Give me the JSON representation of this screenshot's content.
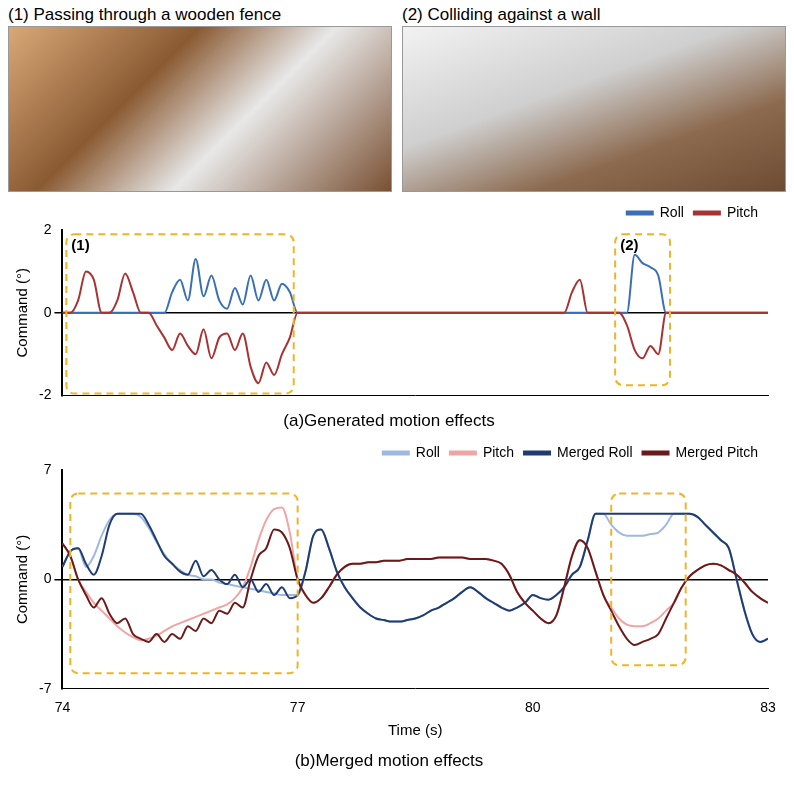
{
  "images": [
    {
      "caption": "(1) Passing through a wooden fence"
    },
    {
      "caption": "(2) Colliding against a wall"
    }
  ],
  "chart_data": [
    {
      "type": "line",
      "title": "(a)Generated motion effects",
      "y_label": "Command (°)",
      "tick_labels": "y",
      "legend": "top right",
      "xlim": [
        74,
        83
      ],
      "ylim": [
        -2,
        2
      ],
      "yticks": [
        -2,
        0,
        2
      ],
      "x": [
        74,
        74.1,
        74.2,
        74.3,
        74.4,
        74.5,
        74.6,
        74.7,
        74.8,
        74.9,
        75,
        75.1,
        75.2,
        75.3,
        75.4,
        75.5,
        75.6,
        75.7,
        75.8,
        75.9,
        76,
        76.1,
        76.2,
        76.3,
        76.4,
        76.5,
        76.6,
        76.7,
        76.8,
        76.9,
        77,
        77.1,
        77.2,
        77.3,
        77.4,
        77.5,
        77.6,
        77.7,
        77.8,
        77.9,
        78,
        78.1,
        78.2,
        78.3,
        78.4,
        78.5,
        78.6,
        78.7,
        78.8,
        78.9,
        79,
        79.1,
        79.2,
        79.3,
        79.4,
        79.5,
        79.6,
        79.7,
        79.8,
        79.9,
        80,
        80.1,
        80.2,
        80.3,
        80.4,
        80.5,
        80.6,
        80.7,
        80.8,
        80.9,
        81,
        81.1,
        81.2,
        81.3,
        81.4,
        81.5,
        81.6,
        81.7,
        81.8,
        81.9,
        82,
        82.1,
        82.2,
        82.3,
        82.4,
        82.5,
        82.6,
        82.7,
        82.8,
        82.9,
        83
      ],
      "series": [
        {
          "name": "Roll",
          "color": "#3a6fb5",
          "values": [
            0,
            0,
            0,
            0,
            0,
            0,
            0,
            0,
            0,
            0,
            0,
            0,
            0,
            0,
            0.5,
            0.8,
            0.3,
            1.3,
            0.4,
            0.9,
            0.3,
            0.1,
            0.6,
            0.2,
            0.9,
            0.3,
            0.8,
            0.3,
            0.7,
            0.5,
            0,
            0,
            0,
            0,
            0,
            0,
            0,
            0,
            0,
            0,
            0,
            0,
            0,
            0,
            0,
            0,
            0,
            0,
            0,
            0,
            0,
            0,
            0,
            0,
            0,
            0,
            0,
            0,
            0,
            0,
            0,
            0,
            0,
            0,
            0,
            0,
            0,
            0,
            0,
            0,
            0,
            0,
            0,
            1.4,
            1.2,
            1.1,
            0.9,
            0,
            0,
            0,
            0,
            0,
            0,
            0,
            0,
            0,
            0,
            0,
            0,
            0,
            0
          ]
        },
        {
          "name": "Pitch",
          "color": "#a83232",
          "values": [
            0,
            0,
            0.3,
            1.0,
            0.8,
            0,
            0,
            0.3,
            0.95,
            0.5,
            0,
            0,
            -0.3,
            -0.6,
            -0.9,
            -0.5,
            -0.8,
            -1.0,
            -0.4,
            -1.1,
            -0.6,
            -0.5,
            -0.9,
            -0.5,
            -1.3,
            -1.7,
            -1.2,
            -1.5,
            -1.0,
            -0.6,
            0,
            0,
            0,
            0,
            0,
            0,
            0,
            0,
            0,
            0,
            0,
            0,
            0,
            0,
            0,
            0,
            0,
            0,
            0,
            0,
            0,
            0,
            0,
            0,
            0,
            0,
            0,
            0,
            0,
            0,
            0,
            0,
            0,
            0,
            0,
            0.5,
            0.8,
            0,
            0,
            0,
            0,
            0,
            -0.3,
            -0.9,
            -1.1,
            -0.8,
            -1.0,
            0,
            0,
            0,
            0,
            0,
            0,
            0,
            0,
            0,
            0,
            0,
            0,
            0,
            0
          ]
        }
      ],
      "annotations": [
        {
          "label": "(1)",
          "x": [
            74.05,
            76.95
          ],
          "y": [
            -1.95,
            1.9
          ]
        },
        {
          "label": "(2)",
          "x": [
            81.05,
            81.75
          ],
          "y": [
            -1.75,
            1.9
          ]
        }
      ]
    },
    {
      "type": "line",
      "title": "(b)Merged motion effects",
      "y_label": "Command (°)",
      "x_label": "Time (s)",
      "legend": "top right",
      "xlim": [
        74,
        83
      ],
      "xticks": [
        74,
        77,
        80,
        83
      ],
      "ylim": [
        -7,
        7
      ],
      "yticks": [
        -7,
        0,
        7
      ],
      "x": [
        74,
        74.1,
        74.2,
        74.3,
        74.4,
        74.5,
        74.6,
        74.7,
        74.8,
        74.9,
        75,
        75.1,
        75.2,
        75.3,
        75.4,
        75.5,
        75.6,
        75.7,
        75.8,
        75.9,
        76,
        76.1,
        76.2,
        76.3,
        76.4,
        76.5,
        76.6,
        76.7,
        76.8,
        76.9,
        77,
        77.1,
        77.2,
        77.3,
        77.4,
        77.5,
        77.6,
        77.7,
        77.8,
        77.9,
        78,
        78.1,
        78.2,
        78.3,
        78.4,
        78.5,
        78.6,
        78.7,
        78.8,
        78.9,
        79,
        79.1,
        79.2,
        79.3,
        79.4,
        79.5,
        79.6,
        79.7,
        79.8,
        79.9,
        80,
        80.1,
        80.2,
        80.3,
        80.4,
        80.5,
        80.6,
        80.7,
        80.8,
        80.9,
        81,
        81.1,
        81.2,
        81.3,
        81.4,
        81.5,
        81.6,
        81.7,
        81.8,
        81.9,
        82,
        82.1,
        82.2,
        82.3,
        82.4,
        82.5,
        82.6,
        82.7,
        82.8,
        82.9,
        83
      ],
      "series": [
        {
          "name": "Roll",
          "color": "#9db9e2",
          "values": [
            0.8,
            1.8,
            2.0,
            0.8,
            1.5,
            2.8,
            3.8,
            4.2,
            4.2,
            4.2,
            4.0,
            3.3,
            2.4,
            1.6,
            1.0,
            0.6,
            0.3,
            0.2,
            0.0,
            0.0,
            -0.2,
            -0.3,
            -0.4,
            -0.5,
            -0.6,
            -0.7,
            -0.8,
            -0.9,
            -1.0,
            -1.0,
            -1.0,
            0.5,
            2.8,
            3.2,
            2.0,
            0.5,
            -0.5,
            -1.2,
            -1.8,
            -2.2,
            -2.5,
            -2.6,
            -2.7,
            -2.7,
            -2.6,
            -2.5,
            -2.3,
            -2.0,
            -1.8,
            -1.5,
            -1.2,
            -0.8,
            -0.5,
            -0.8,
            -1.2,
            -1.5,
            -1.8,
            -2.0,
            -1.8,
            -1.5,
            -1.0,
            -1.2,
            -1.3,
            -1.0,
            -0.5,
            0.3,
            0.8,
            2.5,
            4.2,
            4.2,
            3.5,
            3.0,
            2.8,
            2.8,
            2.8,
            2.9,
            3.0,
            3.5,
            4.2,
            4.2,
            4.2,
            4.0,
            3.5,
            3.0,
            2.5,
            2.0,
            0.0,
            -2.0,
            -3.5,
            -4.0,
            -3.8
          ]
        },
        {
          "name": "Pitch",
          "color": "#f0a5a5",
          "values": [
            2.3,
            1.5,
            0.0,
            -0.8,
            -1.5,
            -2.0,
            -2.5,
            -3.0,
            -3.4,
            -3.7,
            -3.9,
            -3.8,
            -3.6,
            -3.3,
            -3.0,
            -2.8,
            -2.6,
            -2.4,
            -2.2,
            -2.0,
            -1.8,
            -1.6,
            -1.2,
            -0.5,
            0.8,
            2.5,
            3.8,
            4.5,
            4.6,
            3.0,
            0.0,
            -1.0,
            -1.5,
            -1.2,
            -0.5,
            0.3,
            0.8,
            1.0,
            1.0,
            1.1,
            1.1,
            1.2,
            1.2,
            1.2,
            1.3,
            1.3,
            1.3,
            1.3,
            1.4,
            1.4,
            1.4,
            1.4,
            1.3,
            1.3,
            1.3,
            1.2,
            1.0,
            0.3,
            -0.8,
            -1.5,
            -2.0,
            -2.5,
            -2.8,
            -2.3,
            -0.5,
            1.5,
            2.5,
            2.0,
            0.5,
            -1.0,
            -1.8,
            -2.5,
            -2.9,
            -3.0,
            -3.0,
            -2.8,
            -2.5,
            -2.0,
            -1.5,
            -0.5,
            0.2,
            0.6,
            0.9,
            1.0,
            0.9,
            0.6,
            0.3,
            -0.2,
            -0.8,
            -1.2,
            -1.5
          ]
        },
        {
          "name": "Merged Roll",
          "color": "#1f3d73",
          "values": [
            0.8,
            1.8,
            2.0,
            1.0,
            0.3,
            1.5,
            3.5,
            4.2,
            4.2,
            4.2,
            4.2,
            3.5,
            2.5,
            1.5,
            1.0,
            0.5,
            0.3,
            1.2,
            0.2,
            0.6,
            0.0,
            -0.3,
            0.3,
            -0.5,
            0.0,
            -0.8,
            -0.3,
            -1.0,
            -0.5,
            -1.2,
            -1.0,
            0.5,
            2.8,
            3.2,
            2.0,
            0.5,
            -0.5,
            -1.2,
            -1.8,
            -2.2,
            -2.5,
            -2.6,
            -2.7,
            -2.7,
            -2.6,
            -2.5,
            -2.3,
            -2.0,
            -1.8,
            -1.5,
            -1.2,
            -0.8,
            -0.5,
            -0.8,
            -1.2,
            -1.5,
            -1.8,
            -2.0,
            -1.8,
            -1.5,
            -1.0,
            -1.2,
            -1.3,
            -1.0,
            -0.5,
            0.3,
            0.8,
            2.5,
            4.2,
            4.2,
            4.2,
            4.2,
            4.2,
            4.2,
            4.2,
            4.2,
            4.2,
            4.2,
            4.2,
            4.2,
            4.2,
            4.0,
            3.5,
            3.0,
            2.5,
            2.0,
            0.0,
            -2.0,
            -3.5,
            -4.0,
            -3.8
          ]
        },
        {
          "name": "Merged Pitch",
          "color": "#6b1a1a",
          "values": [
            2.3,
            1.5,
            0.0,
            -1.0,
            -1.8,
            -1.2,
            -2.2,
            -2.8,
            -2.5,
            -3.5,
            -3.8,
            -4.0,
            -3.5,
            -4.0,
            -3.5,
            -3.8,
            -3.0,
            -3.3,
            -2.5,
            -2.8,
            -2.0,
            -2.2,
            -1.5,
            -1.8,
            0.0,
            1.5,
            2.0,
            3.2,
            3.0,
            2.0,
            0.0,
            -1.0,
            -1.5,
            -1.2,
            -0.5,
            0.3,
            0.8,
            1.0,
            1.0,
            1.1,
            1.1,
            1.2,
            1.2,
            1.2,
            1.3,
            1.3,
            1.3,
            1.3,
            1.4,
            1.4,
            1.4,
            1.4,
            1.3,
            1.3,
            1.3,
            1.2,
            1.0,
            0.3,
            -0.8,
            -1.5,
            -2.0,
            -2.5,
            -2.8,
            -2.3,
            -0.5,
            1.5,
            2.5,
            2.0,
            0.5,
            -1.0,
            -2.0,
            -3.0,
            -3.8,
            -4.2,
            -4.0,
            -3.8,
            -3.5,
            -2.5,
            -1.5,
            -0.5,
            0.2,
            0.6,
            0.9,
            1.0,
            0.9,
            0.6,
            0.3,
            -0.2,
            -0.8,
            -1.2,
            -1.5
          ]
        }
      ],
      "annotations": [
        {
          "x": [
            74.1,
            77.0
          ],
          "y": [
            -6.0,
            5.5
          ]
        },
        {
          "x": [
            81.0,
            81.95
          ],
          "y": [
            -5.5,
            5.5
          ]
        }
      ]
    }
  ]
}
